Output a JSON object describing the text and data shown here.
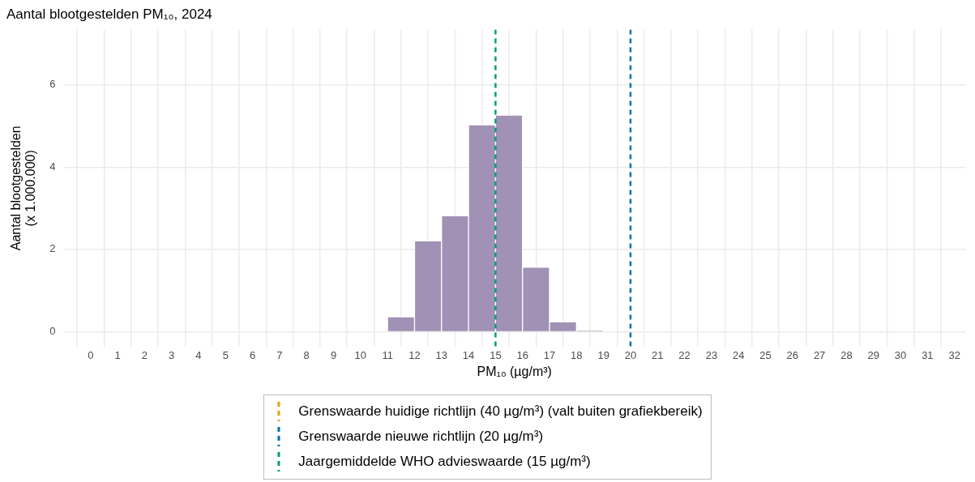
{
  "chart_data": {
    "type": "histogram",
    "title": "Aantal blootgestelden PM₁₀, 2024",
    "xlabel": "PM₁₀ (µg/m³)",
    "ylabel": "Aantal blootgestelden\n(x 1.000.000)",
    "bins": [
      11,
      12,
      13,
      14,
      15,
      16,
      17,
      18,
      19
    ],
    "values": [
      0.36,
      2.21,
      2.82,
      5.03,
      5.27,
      1.57,
      0.24,
      0.02
    ],
    "color": "#a091b5",
    "xlim": [
      -1,
      32.4
    ],
    "xticks": [
      0,
      1,
      2,
      3,
      4,
      5,
      6,
      7,
      8,
      9,
      10,
      11,
      12,
      13,
      14,
      15,
      16,
      17,
      18,
      19,
      20,
      21,
      22,
      23,
      24,
      25,
      26,
      27,
      28,
      29,
      30,
      31,
      32
    ],
    "ylim": [
      -0.37,
      7.35
    ],
    "yticks": [
      0,
      2,
      4,
      6
    ],
    "ref_lines": [
      {
        "axis": "x",
        "label": "Grenswaarde huidige richtlijn (40 µg/m³) (valt buiten grafiekbereik)",
        "color": "#e69f00",
        "line_style": "dashed"
      },
      {
        "axis": "x",
        "value": 20,
        "label": "Grenswaarde nieuwe richtlijn (20 µg/m³)",
        "color": "#0072b2",
        "line_style": "dashed"
      },
      {
        "axis": "x",
        "value": 15,
        "label": "Jaargemiddelde WHO advieswaarde (15 µg/m³)",
        "color": "#009e73",
        "line_style": "dashed"
      }
    ],
    "grid": true,
    "legend": "bottom"
  }
}
